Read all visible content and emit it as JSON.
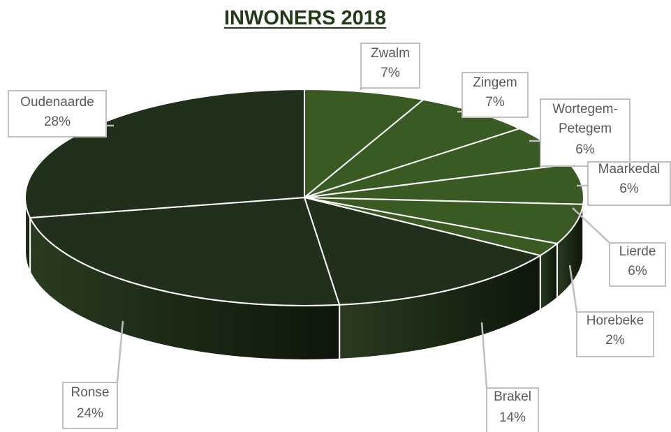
{
  "chart_data": {
    "type": "pie",
    "title": "INWONERS 2018",
    "slices": [
      {
        "label": "Zwalm",
        "value": 7,
        "value_label": "7%"
      },
      {
        "label": "Zingem",
        "value": 7,
        "value_label": "7%"
      },
      {
        "label": "Wortegem-Petegem",
        "label_lines": [
          "Wortegem-",
          "Petegem"
        ],
        "value": 6,
        "value_label": "6%"
      },
      {
        "label": "Maarkedal",
        "value": 6,
        "value_label": "6%"
      },
      {
        "label": "Lierde",
        "value": 6,
        "value_label": "6%"
      },
      {
        "label": "Horebeke",
        "value": 2,
        "value_label": "2%"
      },
      {
        "label": "Brakel",
        "value": 14,
        "value_label": "14%"
      },
      {
        "label": "Ronse",
        "value": 24,
        "value_label": "24%"
      },
      {
        "label": "Oudenaarde",
        "value": 28,
        "value_label": "28%"
      }
    ],
    "colors": {
      "small_slices": "#3a5a23",
      "large_slices": "#21301a",
      "side": "#152010",
      "edge": "#ffffff"
    },
    "legend": "none",
    "three_d": true
  }
}
